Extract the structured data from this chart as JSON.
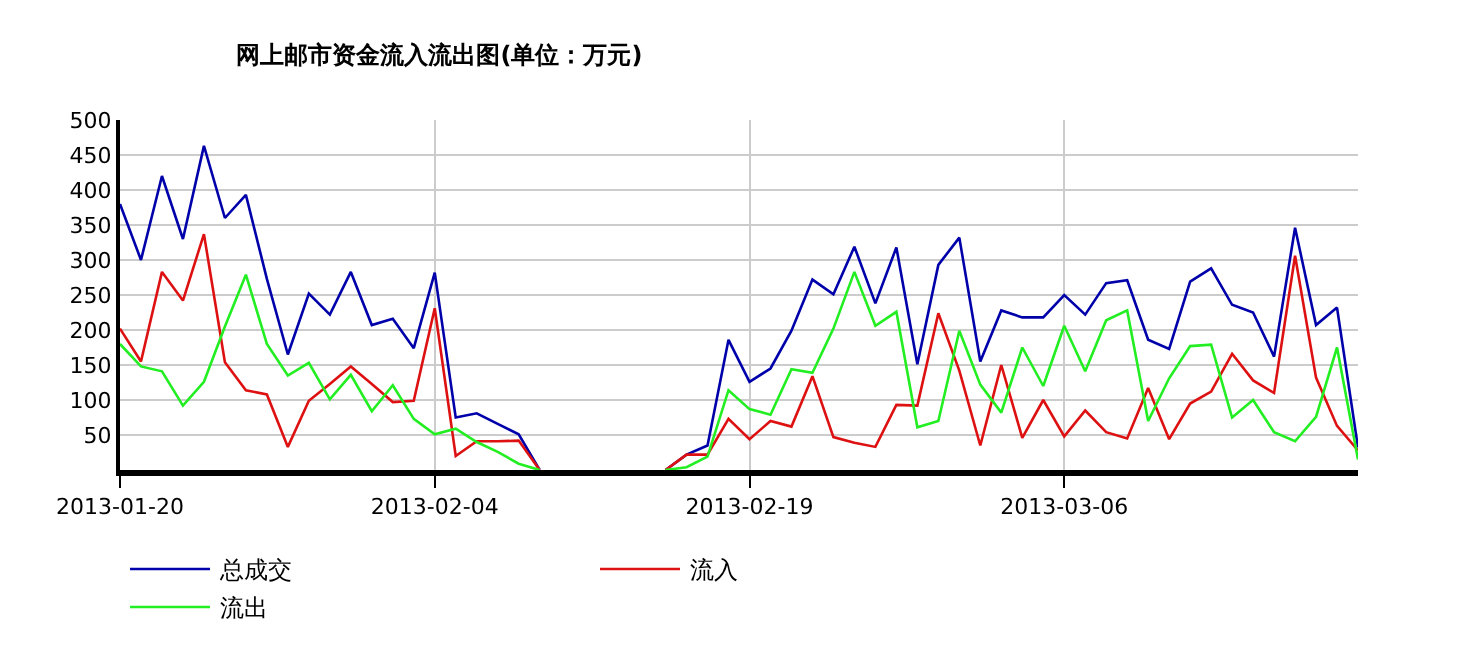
{
  "chart_data": {
    "type": "line",
    "title": "网上邮市资金流入流出图(单位：万元)",
    "x": [
      "2013-01-20",
      "2013-01-21",
      "2013-01-22",
      "2013-01-23",
      "2013-01-24",
      "2013-01-25",
      "2013-01-26",
      "2013-01-27",
      "2013-01-28",
      "2013-01-29",
      "2013-01-30",
      "2013-01-31",
      "2013-02-01",
      "2013-02-02",
      "2013-02-03",
      "2013-02-04",
      "2013-02-05",
      "2013-02-06",
      "2013-02-07",
      "2013-02-08",
      "2013-02-09",
      "2013-02-10",
      "2013-02-11",
      "2013-02-12",
      "2013-02-13",
      "2013-02-14",
      "2013-02-15",
      "2013-02-16",
      "2013-02-17",
      "2013-02-18",
      "2013-02-19",
      "2013-02-20",
      "2013-02-21",
      "2013-02-22",
      "2013-02-23",
      "2013-02-24",
      "2013-02-25",
      "2013-02-26",
      "2013-02-27",
      "2013-02-28",
      "2013-03-01",
      "2013-03-02",
      "2013-03-03",
      "2013-03-04",
      "2013-03-05",
      "2013-03-06",
      "2013-03-07",
      "2013-03-08",
      "2013-03-09",
      "2013-03-10",
      "2013-03-11",
      "2013-03-12",
      "2013-03-13",
      "2013-03-14",
      "2013-03-15",
      "2013-03-16",
      "2013-03-17",
      "2013-03-18",
      "2013-03-19",
      "2013-03-20"
    ],
    "series": [
      {
        "name": "总成交",
        "color": "#0000aa",
        "values": [
          380,
          300,
          420,
          330,
          463,
          360,
          393,
          273,
          165,
          252,
          222,
          283,
          207,
          216,
          174,
          282,
          75,
          81,
          66,
          51,
          0,
          null,
          null,
          null,
          null,
          null,
          0,
          22,
          35,
          186,
          126,
          145,
          199,
          272,
          251,
          319,
          238,
          318,
          151,
          293,
          332,
          155,
          228,
          218,
          218,
          250,
          222,
          267,
          271,
          186,
          173,
          269,
          288,
          236,
          225,
          162,
          346,
          207,
          232,
          32
        ]
      },
      {
        "name": "流入",
        "color": "#dd1111",
        "values": [
          202,
          155,
          283,
          242,
          337,
          154,
          114,
          108,
          33,
          99,
          123,
          148,
          123,
          97,
          99,
          231,
          20,
          41,
          41,
          42,
          0,
          null,
          null,
          null,
          null,
          null,
          0,
          22,
          22,
          73,
          44,
          70,
          62,
          134,
          47,
          39,
          33,
          93,
          92,
          224,
          142,
          35,
          150,
          46,
          100,
          48,
          85,
          54,
          45,
          117,
          44,
          95,
          112,
          166,
          128,
          110,
          306,
          132,
          63,
          28
        ]
      },
      {
        "name": "流出",
        "color": "#22ee22",
        "values": [
          180,
          148,
          141,
          92,
          126,
          205,
          279,
          180,
          135,
          153,
          101,
          136,
          84,
          121,
          73,
          51,
          59,
          40,
          26,
          9,
          0,
          null,
          null,
          null,
          null,
          null,
          0,
          4,
          19,
          114,
          87,
          79,
          144,
          139,
          202,
          283,
          206,
          226,
          61,
          70,
          199,
          122,
          82,
          175,
          120,
          206,
          141,
          214,
          228,
          70,
          131,
          177,
          179,
          75,
          100,
          54,
          41,
          76,
          175,
          15
        ]
      }
    ],
    "xlim": [
      "2013-01-20",
      "2013-03-20"
    ],
    "xticks": [
      "2013-01-20",
      "2013-02-04",
      "2013-02-19",
      "2013-03-06"
    ],
    "ylim": [
      0,
      500
    ],
    "yticks": [
      50,
      100,
      150,
      200,
      250,
      300,
      350,
      400,
      450,
      500
    ],
    "grid": true,
    "legend": "bottom left",
    "marker": "none",
    "line_style": "solid"
  }
}
